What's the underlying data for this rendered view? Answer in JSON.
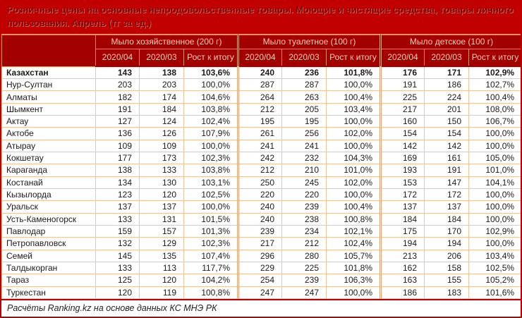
{
  "title": "Розничные цены на основные непродовольственные товары. Моющие и чистящие средства, товары личного пользования. Апрель (тг за ед.)",
  "source_note": "Расчёты Ranking.kz на основе данных КС МНЭ РК",
  "colors": {
    "title_bg": "#c10000",
    "title_text": "#7c0000",
    "header_bg": "#a30000",
    "header_text": "#f6cdb8",
    "outer_border": "#c00000",
    "cell_border": "#f5c49c",
    "data_text": "#1a1a1a"
  },
  "chart_data": {
    "type": "table",
    "title": "Розничные цены на основные непродовольственные товары. Моющие и чистящие средства, товары личного пользования. Апрель (тг за ед.)",
    "column_groups": [
      "Мыло хозяйственное (200 г)",
      "Мыло туалетное (100 г)",
      "Мыло детское (100 г)"
    ],
    "sub_columns": [
      "2020/04",
      "2020/03",
      "Рост к итогу"
    ],
    "rows": [
      {
        "region": "Казахстан",
        "bold": true,
        "values": [
          "143",
          "138",
          "103,6%",
          "240",
          "236",
          "101,8%",
          "176",
          "171",
          "102,9%"
        ]
      },
      {
        "region": "Нур-Султан",
        "bold": false,
        "values": [
          "203",
          "203",
          "100,0%",
          "287",
          "287",
          "100,0%",
          "191",
          "186",
          "102,7%"
        ]
      },
      {
        "region": "Алматы",
        "bold": false,
        "values": [
          "182",
          "174",
          "104,6%",
          "264",
          "263",
          "100,4%",
          "225",
          "224",
          "100,4%"
        ]
      },
      {
        "region": "Шымкент",
        "bold": false,
        "values": [
          "191",
          "184",
          "103,8%",
          "212",
          "205",
          "103,4%",
          "217",
          "201",
          "108,0%"
        ]
      },
      {
        "region": "Актау",
        "bold": false,
        "values": [
          "127",
          "124",
          "102,4%",
          "195",
          "195",
          "100,0%",
          "160",
          "150",
          "106,7%"
        ]
      },
      {
        "region": "Актобе",
        "bold": false,
        "values": [
          "136",
          "126",
          "107,9%",
          "261",
          "256",
          "102,0%",
          "154",
          "154",
          "100,0%"
        ]
      },
      {
        "region": "Атырау",
        "bold": false,
        "values": [
          "109",
          "109",
          "100,0%",
          "241",
          "241",
          "100,0%",
          "142",
          "142",
          "100,0%"
        ]
      },
      {
        "region": "Кокшетау",
        "bold": false,
        "values": [
          "177",
          "173",
          "102,3%",
          "242",
          "232",
          "104,3%",
          "169",
          "161",
          "105,0%"
        ]
      },
      {
        "region": "Караганда",
        "bold": false,
        "values": [
          "138",
          "133",
          "103,8%",
          "212",
          "210",
          "101,0%",
          "193",
          "191",
          "101,0%"
        ]
      },
      {
        "region": "Костанай",
        "bold": false,
        "values": [
          "134",
          "130",
          "103,1%",
          "250",
          "245",
          "102,0%",
          "153",
          "147",
          "104,1%"
        ]
      },
      {
        "region": "Кызылорда",
        "bold": false,
        "values": [
          "123",
          "120",
          "102,5%",
          "220",
          "220",
          "100,0%",
          "172",
          "172",
          "100,0%"
        ]
      },
      {
        "region": "Уральск",
        "bold": false,
        "values": [
          "137",
          "137",
          "100,0%",
          "240",
          "239",
          "100,4%",
          "137",
          "137",
          "100,0%"
        ]
      },
      {
        "region": "Усть-Каменогорск",
        "bold": false,
        "values": [
          "133",
          "131",
          "101,5%",
          "240",
          "238",
          "100,8%",
          "184",
          "184",
          "100,0%"
        ]
      },
      {
        "region": "Павлодар",
        "bold": false,
        "values": [
          "159",
          "157",
          "101,3%",
          "239",
          "234",
          "102,1%",
          "175",
          "170",
          "102,9%"
        ]
      },
      {
        "region": "Петропавловск",
        "bold": false,
        "values": [
          "132",
          "129",
          "102,3%",
          "217",
          "212",
          "102,4%",
          "194",
          "194",
          "100,0%"
        ]
      },
      {
        "region": "Семей",
        "bold": false,
        "values": [
          "145",
          "135",
          "107,4%",
          "296",
          "280",
          "105,7%",
          "213",
          "206",
          "103,4%"
        ]
      },
      {
        "region": "Талдыкорган",
        "bold": false,
        "values": [
          "133",
          "113",
          "117,7%",
          "229",
          "225",
          "101,8%",
          "162",
          "158",
          "102,5%"
        ]
      },
      {
        "region": "Тараз",
        "bold": false,
        "values": [
          "125",
          "120",
          "104,2%",
          "254",
          "239",
          "106,3%",
          "163",
          "155",
          "105,2%"
        ]
      },
      {
        "region": "Туркестан",
        "bold": false,
        "values": [
          "120",
          "119",
          "100,8%",
          "247",
          "247",
          "100,0%",
          "186",
          "183",
          "101,6%"
        ]
      }
    ],
    "source_note": "Расчёты Ranking.kz на основе данных КС МНЭ РК"
  }
}
